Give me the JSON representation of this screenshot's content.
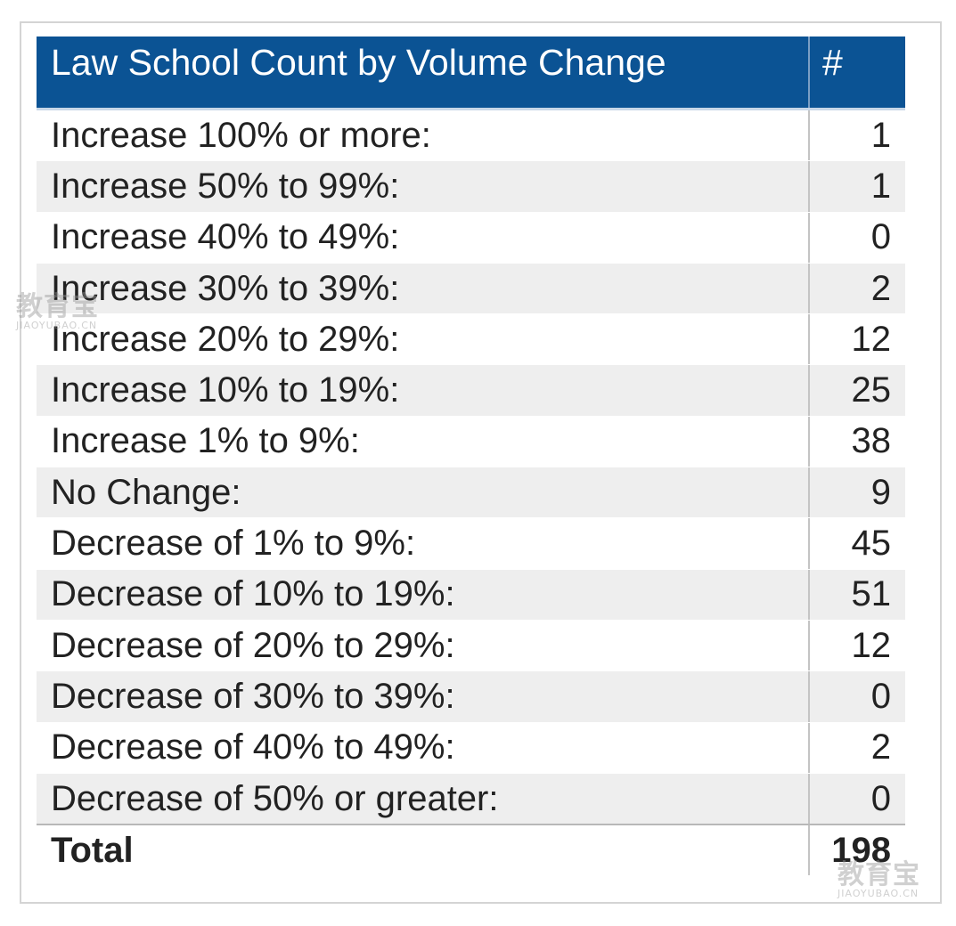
{
  "chart_data": {
    "type": "table",
    "columns": [
      "Law School Count by Volume Change",
      "#"
    ],
    "rows": [
      {
        "label": "Increase 100% or more:",
        "value": 1
      },
      {
        "label": "Increase 50% to 99%:",
        "value": 1
      },
      {
        "label": "Increase 40% to 49%:",
        "value": 0
      },
      {
        "label": "Increase 30% to 39%:",
        "value": 2
      },
      {
        "label": "Increase 20% to 29%:",
        "value": 12
      },
      {
        "label": "Increase 10% to 19%:",
        "value": 25
      },
      {
        "label": "Increase 1% to 9%:",
        "value": 38
      },
      {
        "label": "No Change:",
        "value": 9
      },
      {
        "label": "Decrease of 1% to 9%:",
        "value": 45
      },
      {
        "label": "Decrease of 10% to 19%:",
        "value": 51
      },
      {
        "label": "Decrease of 20% to 29%:",
        "value": 12
      },
      {
        "label": "Decrease of 30% to 39%:",
        "value": 0
      },
      {
        "label": "Decrease of 40% to 49%:",
        "value": 2
      },
      {
        "label": "Decrease of 50% or greater:",
        "value": 0
      }
    ],
    "total": {
      "label": "Total",
      "value": 198
    }
  },
  "colors": {
    "header_bg": "#0b5394",
    "row_alt_bg": "#eeeeee",
    "text": "#222222"
  },
  "watermark": {
    "text": "教育宝",
    "subtext": "JIAOYUBAO.CN"
  }
}
